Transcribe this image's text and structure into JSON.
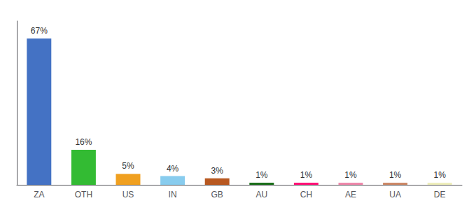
{
  "chart_data": {
    "type": "bar",
    "categories": [
      "ZA",
      "OTH",
      "US",
      "IN",
      "GB",
      "AU",
      "CH",
      "AE",
      "UA",
      "DE"
    ],
    "values": [
      67,
      16,
      5,
      4,
      3,
      1,
      1,
      1,
      1,
      1
    ],
    "value_labels": [
      "67%",
      "16%",
      "5%",
      "4%",
      "3%",
      "1%",
      "1%",
      "1%",
      "1%",
      "1%"
    ],
    "colors": [
      "#4472c4",
      "#33bb33",
      "#f0a020",
      "#88ccee",
      "#b85820",
      "#1a6e1a",
      "#ff1177",
      "#ee88aa",
      "#cc8866",
      "#eeeebb"
    ],
    "ylim": [
      0,
      75
    ],
    "data_labels": true,
    "tick_labels": "x",
    "grid": false
  }
}
